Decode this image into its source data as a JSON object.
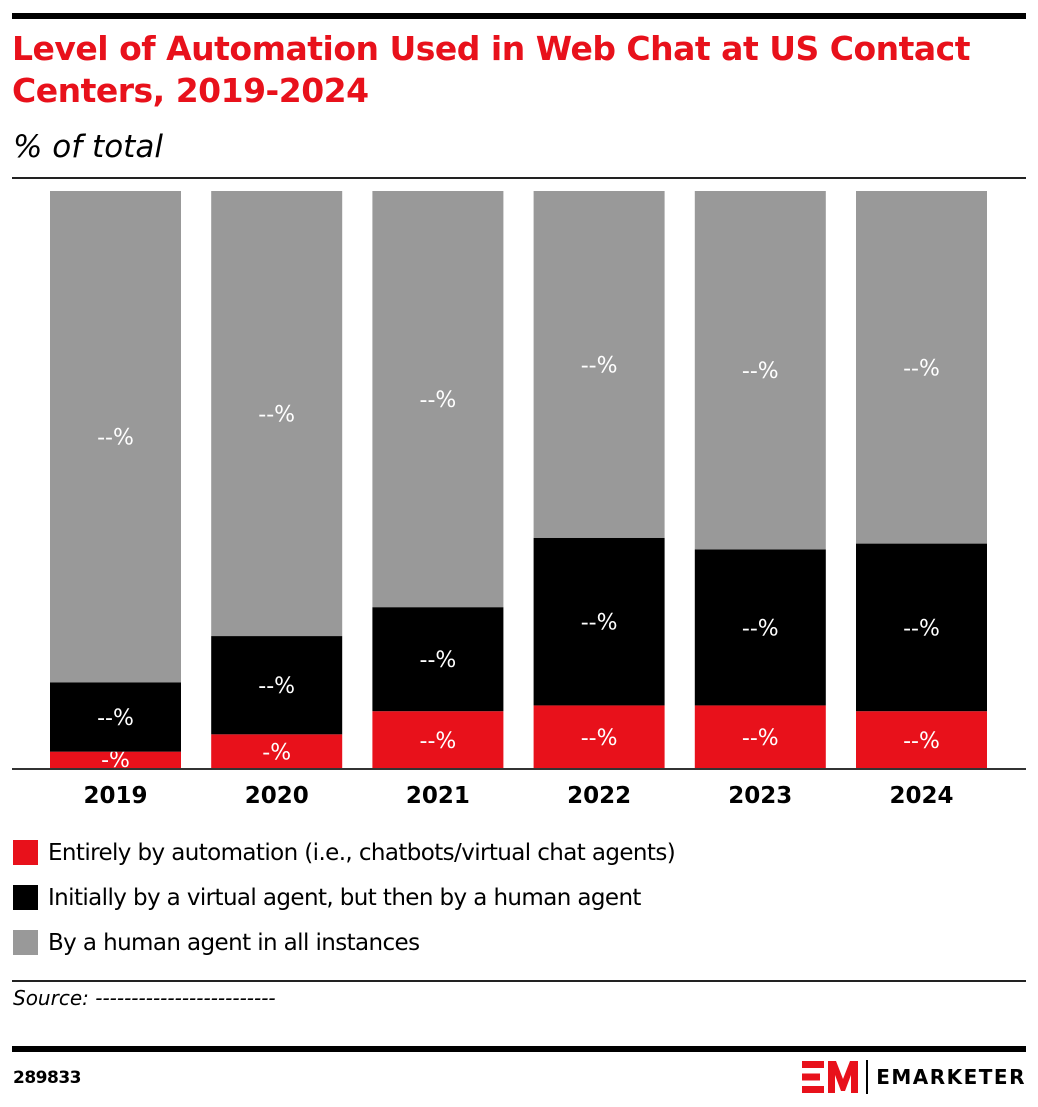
{
  "header": {
    "title": "Level of Automation Used in Web Chat at US Contact Centers, 2019-2024",
    "subtitle": "% of total"
  },
  "colors": {
    "accent": "#e8111b",
    "automation": "#e8111b",
    "virtual_then_human": "#000000",
    "human_all": "#999999",
    "label_text": "#ffffff"
  },
  "chart_data": {
    "type": "bar",
    "stacked": true,
    "title": "Level of Automation Used in Web Chat at US Contact Centers, 2019-2024",
    "subtitle": "% of total",
    "xlabel": "",
    "ylabel": "",
    "ylim": [
      0,
      100
    ],
    "grid": false,
    "legend_position": "bottom",
    "categories": [
      "2019",
      "2020",
      "2021",
      "2022",
      "2023",
      "2024"
    ],
    "series": [
      {
        "name": "Entirely by automation (i.e., chatbots/virtual chat agents)",
        "color": "#e8111b",
        "values": [
          3,
          6,
          10,
          11,
          11,
          10
        ],
        "labels": [
          "-%",
          "-%",
          "--%",
          "--%",
          "--%",
          "--%"
        ]
      },
      {
        "name": "Initially by a virtual agent, but then by a human agent",
        "color": "#000000",
        "values": [
          12,
          17,
          18,
          29,
          27,
          29
        ],
        "labels": [
          "--%",
          "--%",
          "--%",
          "--%",
          "--%",
          "--%"
        ]
      },
      {
        "name": "By a human agent in all instances",
        "color": "#999999",
        "values": [
          85,
          77,
          72,
          60,
          62,
          61
        ],
        "labels": [
          "--%",
          "--%",
          "--%",
          "--%",
          "--%",
          "--%"
        ]
      }
    ]
  },
  "legend": [
    {
      "label": "Entirely by automation (i.e., chatbots/virtual chat agents)",
      "color": "#e8111b"
    },
    {
      "label": "Initially by a virtual agent, but then by a human agent",
      "color": "#000000"
    },
    {
      "label": "By a human agent in all instances",
      "color": "#999999"
    }
  ],
  "footer": {
    "source": "Source: -------------------------",
    "chart_id": "289833",
    "brand": "EMARKETER"
  }
}
